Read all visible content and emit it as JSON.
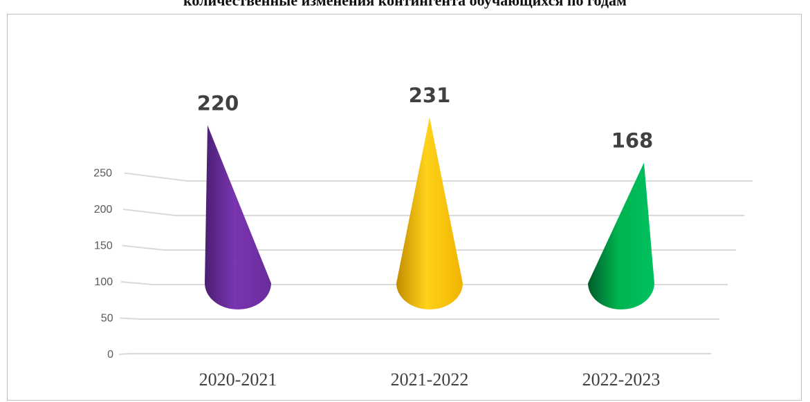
{
  "title": "количественные изменения контингента обучающихся по годам",
  "chart_data": {
    "type": "bar",
    "shape": "cone",
    "categories": [
      "2020-2021",
      "2021-2022",
      "2022-2023"
    ],
    "values": [
      220,
      231,
      168
    ],
    "data_labels": [
      "220",
      "231",
      "168"
    ],
    "yticks": [
      "0",
      "50",
      "100",
      "150",
      "200",
      "250"
    ],
    "ylim": [
      0,
      250
    ],
    "colors": [
      "#7030a0",
      "#ffc000",
      "#00b050"
    ],
    "grid": true,
    "legend": false,
    "xlabel": "",
    "ylabel": ""
  }
}
